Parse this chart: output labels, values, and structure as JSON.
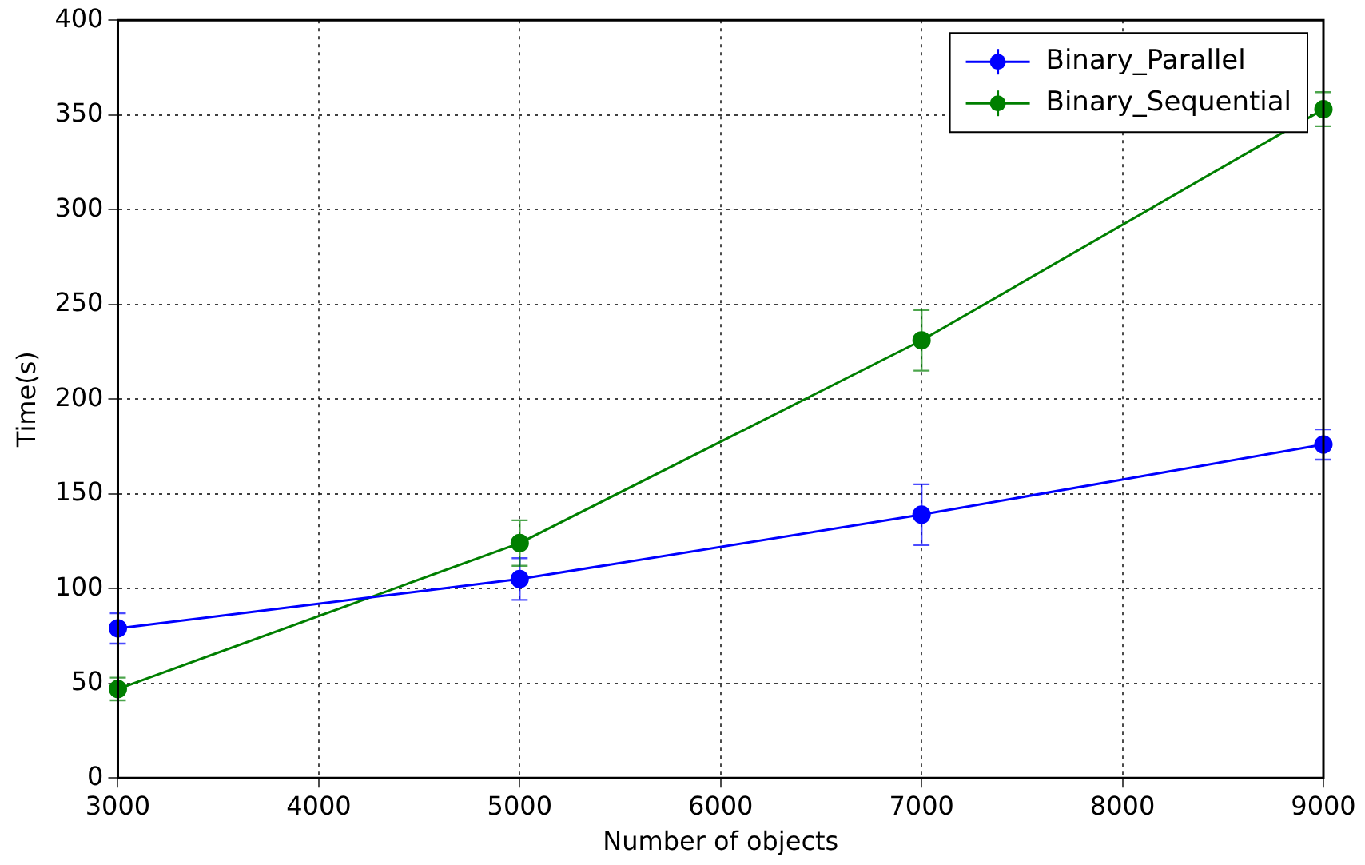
{
  "chart_data": {
    "type": "line",
    "xlabel": "Number of objects",
    "ylabel": "Time(s)",
    "x": [
      3000,
      5000,
      7000,
      9000
    ],
    "series": [
      {
        "name": "Binary_Parallel",
        "color": "#0000ff",
        "values": [
          79,
          105,
          139,
          176
        ],
        "errors": [
          8,
          11,
          16,
          8
        ]
      },
      {
        "name": "Binary_Sequential",
        "color": "#007f00",
        "values": [
          47,
          124,
          231,
          353
        ],
        "errors": [
          6,
          12,
          16,
          9
        ]
      }
    ],
    "xlim": [
      3000,
      9000
    ],
    "xticks": [
      3000,
      4000,
      5000,
      6000,
      7000,
      8000,
      9000
    ],
    "ylim": [
      0,
      400
    ],
    "yticks": [
      0,
      50,
      100,
      150,
      200,
      250,
      300,
      350,
      400
    ],
    "grid": true,
    "legend": "top right",
    "marker": "circle",
    "line_style": "solid"
  }
}
